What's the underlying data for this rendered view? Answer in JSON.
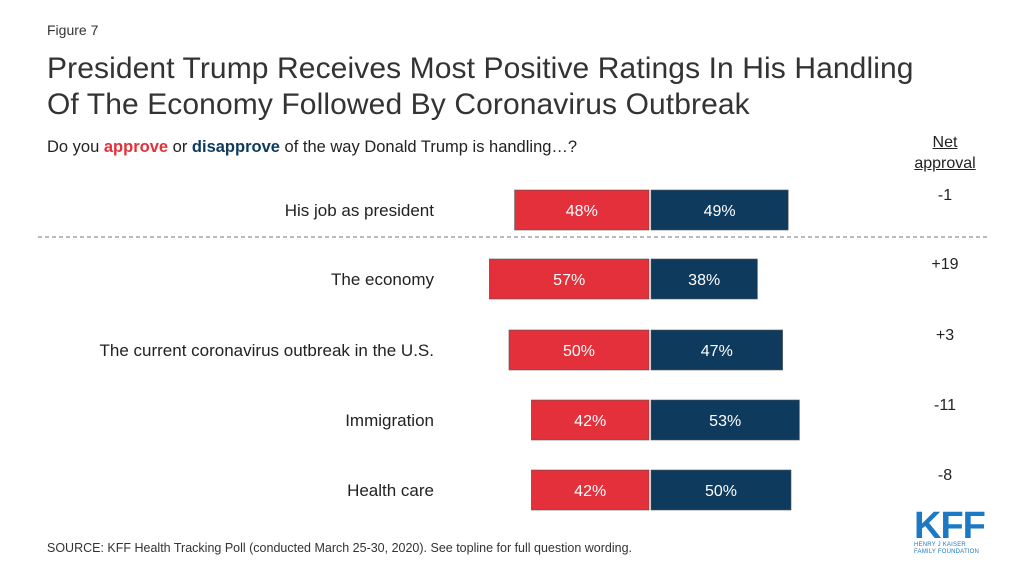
{
  "figure_label": "Figure 7",
  "title_lines": [
    "President Trump Receives Most Positive Ratings In His Handling",
    "Of The Economy Followed By Coronavirus Outbreak"
  ],
  "subtitle": {
    "prefix": "Do you ",
    "approve": "approve",
    "middle": " or ",
    "disapprove": "disapprove",
    "suffix": " of the way Donald Trump is handling…?"
  },
  "net_header": [
    "Net",
    "approval"
  ],
  "colors": {
    "approve": "#e4303a",
    "disapprove": "#0e3a5e",
    "text": "#222222",
    "logo": "#1c7ac4"
  },
  "chart_data": {
    "type": "bar",
    "orientation": "horizontal-diverging",
    "categories": [
      "His job as president",
      "The economy",
      "The current coronavirus outbreak in the U.S.",
      "Immigration",
      "Health care"
    ],
    "series": [
      {
        "name": "approve",
        "values": [
          48,
          57,
          50,
          42,
          42
        ]
      },
      {
        "name": "disapprove",
        "values": [
          49,
          38,
          47,
          53,
          50
        ]
      }
    ],
    "value_labels": {
      "approve": [
        "48%",
        "57%",
        "50%",
        "42%",
        "42%"
      ],
      "disapprove": [
        "49%",
        "38%",
        "47%",
        "53%",
        "50%"
      ]
    },
    "net_approval": [
      "-1",
      "+19",
      "+3",
      "-11",
      "-8"
    ],
    "separator_after_category": 0
  },
  "source": "SOURCE: KFF Health Tracking Poll (conducted March 25-30, 2020). See topline for full question wording.",
  "logo": {
    "text": "KFF",
    "sub_lines": [
      "Henry J Kaiser",
      "Family Foundation"
    ]
  }
}
